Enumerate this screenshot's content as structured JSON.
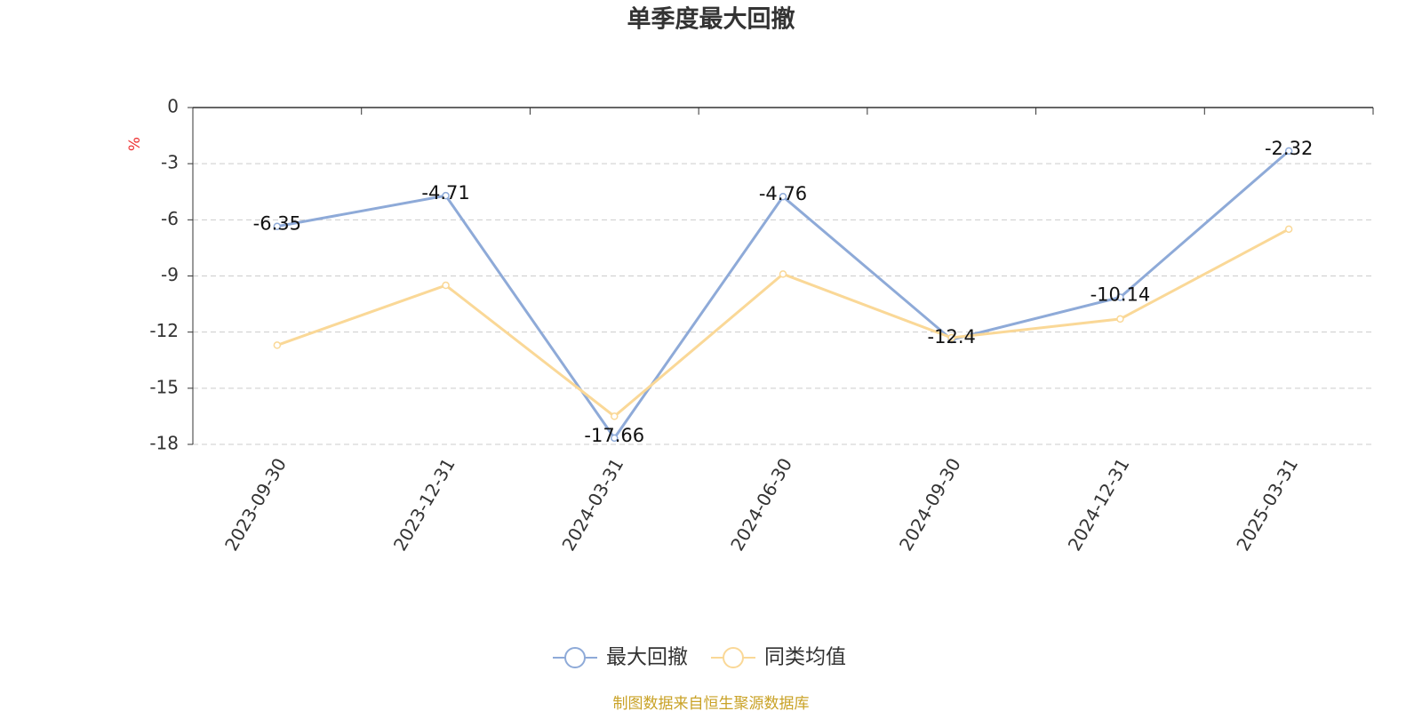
{
  "chart_data": {
    "type": "line",
    "title": "单季度最大回撤",
    "y_unit": "%",
    "categories": [
      "2023-09-30",
      "2023-12-31",
      "2024-03-31",
      "2024-06-30",
      "2024-09-30",
      "2024-12-31",
      "2025-03-31"
    ],
    "series": [
      {
        "name": "最大回撤",
        "color": "#8eaad8",
        "values": [
          -6.35,
          -4.71,
          -17.66,
          -4.76,
          -12.4,
          -10.14,
          -2.32
        ],
        "show_labels": true
      },
      {
        "name": "同类均值",
        "color": "#fad897",
        "values": [
          -12.7,
          -9.5,
          -16.5,
          -8.9,
          -12.3,
          -11.3,
          -6.5
        ],
        "show_labels": false
      }
    ],
    "ylim": [
      -18,
      0
    ],
    "yticks": [
      0,
      -3,
      -6,
      -9,
      -12,
      -15,
      -18
    ],
    "grid": true,
    "legend": "bottom",
    "source": "制图数据来自恒生聚源数据库"
  }
}
